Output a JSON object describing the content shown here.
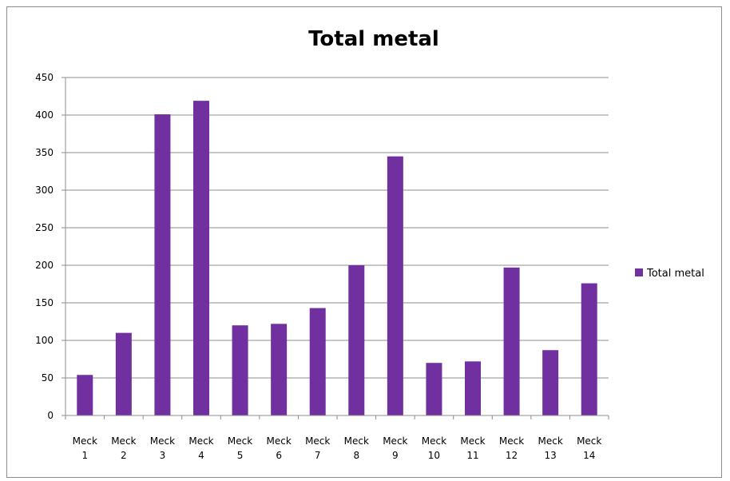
{
  "chart_data": {
    "type": "bar",
    "title": "Total metal",
    "xlabel": "",
    "ylabel": "",
    "ylim": [
      0,
      450
    ],
    "yticks": [
      0,
      50,
      100,
      150,
      200,
      250,
      300,
      350,
      400,
      450
    ],
    "categories": [
      [
        "Meck",
        "1"
      ],
      [
        "Meck",
        "2"
      ],
      [
        "Meck",
        "3"
      ],
      [
        "Meck",
        "4"
      ],
      [
        "Meck",
        "5"
      ],
      [
        "Meck",
        "6"
      ],
      [
        "Meck",
        "7"
      ],
      [
        "Meck",
        "8"
      ],
      [
        "Meck",
        "9"
      ],
      [
        "Meck",
        "10"
      ],
      [
        "Meck",
        "11"
      ],
      [
        "Meck",
        "12"
      ],
      [
        "Meck",
        "13"
      ],
      [
        "Meck",
        "14"
      ]
    ],
    "series": [
      {
        "name": "Total metal",
        "color": "#7030a0",
        "values": [
          54,
          110,
          401,
          419,
          120,
          122,
          143,
          200,
          345,
          70,
          72,
          197,
          87,
          176
        ]
      }
    ],
    "grid": true,
    "legend": "right"
  }
}
